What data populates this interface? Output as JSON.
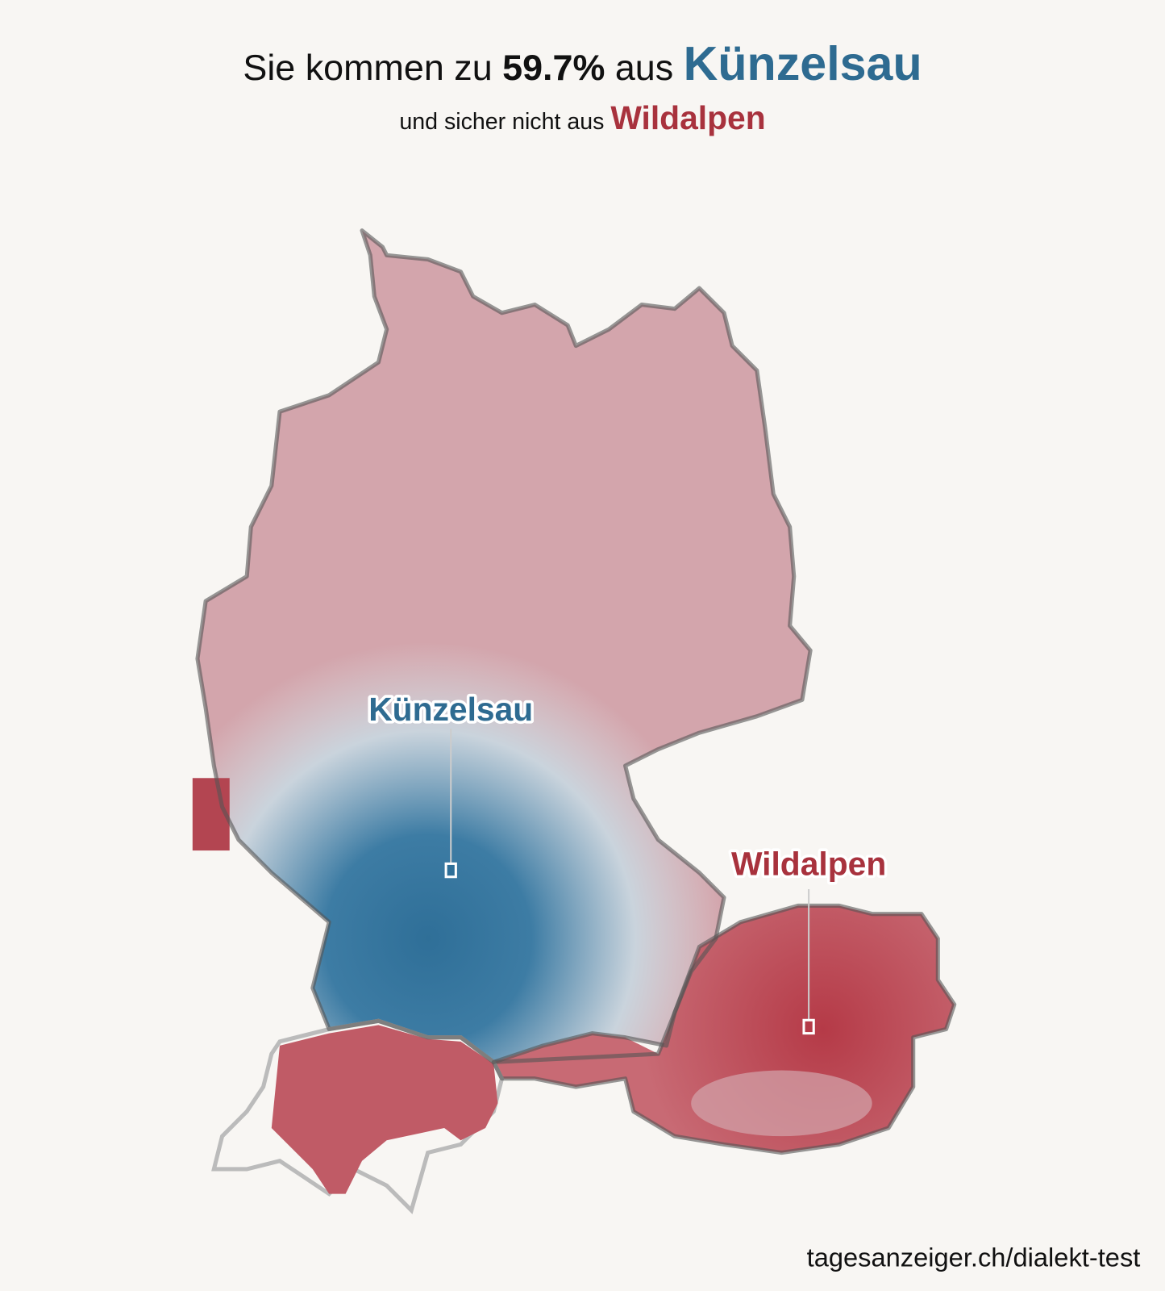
{
  "header": {
    "title_prefix": "Sie kommen zu",
    "percent": "59.7%",
    "title_mid": "aus",
    "best_place": "Künzelsau",
    "subtitle_prefix": "und sicher nicht aus",
    "worst_place": "Wildalpen"
  },
  "map": {
    "labels": [
      "Künzelsau",
      "Wildalpen"
    ]
  },
  "footer": {
    "source": "tagesanzeiger.ch/dialekt-test"
  }
}
